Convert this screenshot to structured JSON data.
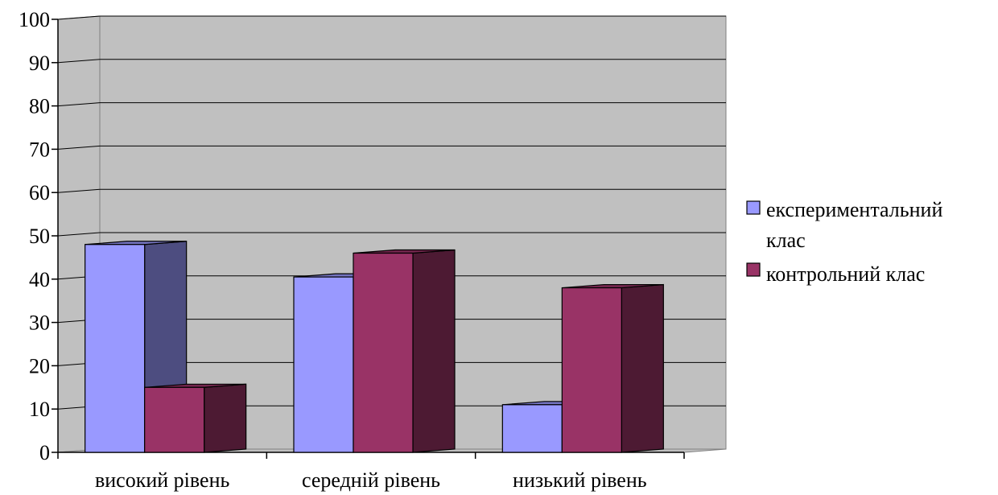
{
  "chart_data": {
    "type": "bar",
    "categories": [
      "високий рівень",
      "середній рівень",
      "низький рівень"
    ],
    "series": [
      {
        "name": "експериментальний клас",
        "values": [
          48,
          40.5,
          11
        ],
        "color": "#9999ff"
      },
      {
        "name": "контрольний клас",
        "values": [
          15,
          46,
          38
        ],
        "color": "#993366"
      }
    ],
    "ylim": [
      0,
      100
    ],
    "yticks": [
      0,
      10,
      20,
      30,
      40,
      50,
      60,
      70,
      80,
      90,
      100
    ],
    "grid": true,
    "legend_position": "right",
    "legend_lines": [
      [
        "експериментальний",
        "клас"
      ],
      [
        "контрольний клас"
      ]
    ],
    "wall_color": "#c0c0c0"
  }
}
